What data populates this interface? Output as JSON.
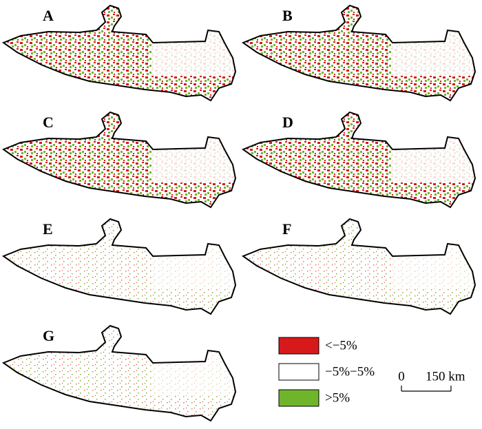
{
  "panels": [
    {
      "label": "A",
      "style": "change"
    },
    {
      "label": "B",
      "style": "change"
    },
    {
      "label": "C",
      "style": "change"
    },
    {
      "label": "D",
      "style": "change"
    },
    {
      "label": "E",
      "style": "sparse"
    },
    {
      "label": "F",
      "style": "sparse"
    },
    {
      "label": "G",
      "style": "sparse"
    }
  ],
  "legend": [
    {
      "label": "<−5%",
      "color": "#d7191c"
    },
    {
      "label": "−5%−5%",
      "color": "#ffffff"
    },
    {
      "label": ">5%",
      "color": "#6fb52c"
    }
  ],
  "scale_bar": {
    "start": "0",
    "end": "150 km"
  }
}
